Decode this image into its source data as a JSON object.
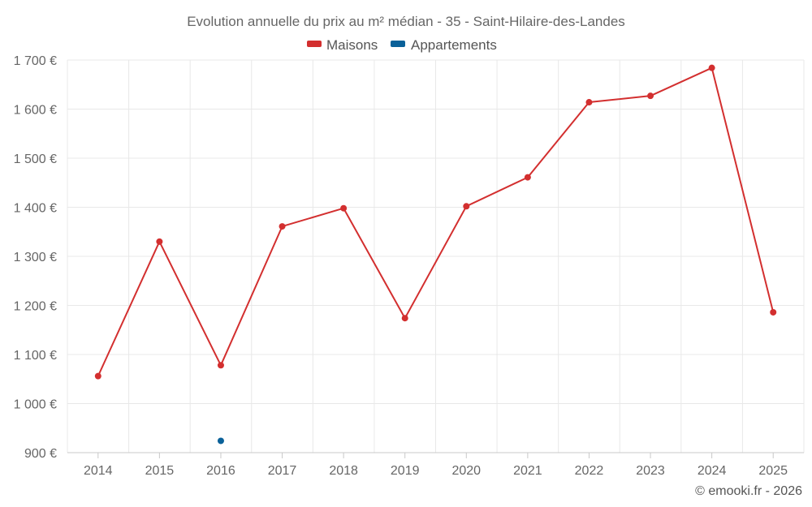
{
  "chart_data": {
    "type": "line",
    "title": "Evolution annuelle du prix au m² médian - 35 - Saint-Hilaire-des-Landes",
    "categories": [
      "2014",
      "2015",
      "2016",
      "2017",
      "2018",
      "2019",
      "2020",
      "2021",
      "2022",
      "2023",
      "2024",
      "2025"
    ],
    "y_tick_labels": [
      "900 €",
      "1 000 €",
      "1 100 €",
      "1 200 €",
      "1 300 €",
      "1 400 €",
      "1 500 €",
      "1 600 €",
      "1 700 €"
    ],
    "y_ticks": [
      900,
      1000,
      1100,
      1200,
      1300,
      1400,
      1500,
      1600,
      1700
    ],
    "ylim": [
      900,
      1700
    ],
    "grid": true,
    "legend_position": "top-center",
    "series": [
      {
        "name": "Maisons",
        "color": "#d32f2f",
        "values": [
          1056,
          1330,
          1078,
          1361,
          1398,
          1174,
          1402,
          1461,
          1614,
          1627,
          1684,
          1186
        ]
      },
      {
        "name": "Appartements",
        "color": "#0a6199",
        "values": [
          null,
          null,
          924,
          null,
          null,
          null,
          null,
          null,
          null,
          null,
          null,
          null
        ]
      }
    ],
    "credit": "© emooki.fr - 2026"
  }
}
